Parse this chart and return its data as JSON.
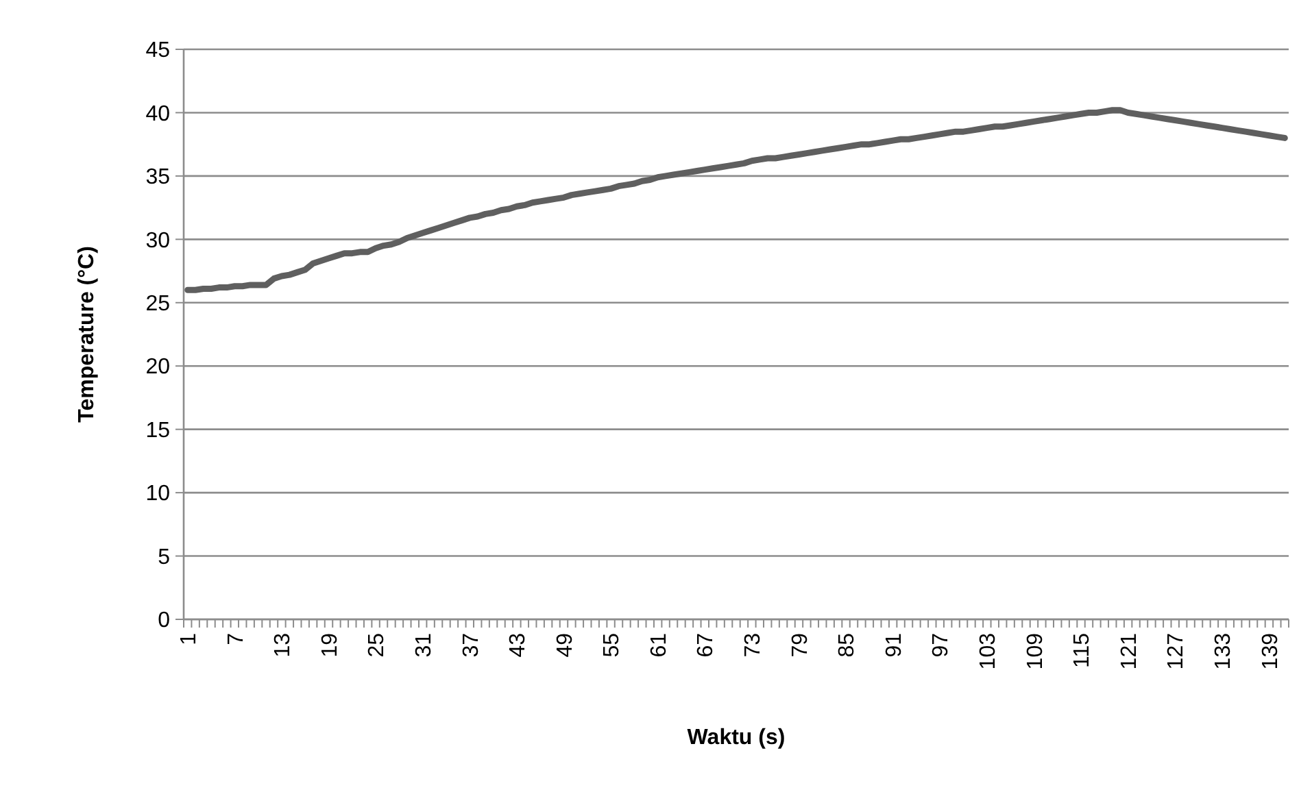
{
  "chart_data": {
    "type": "line",
    "xlabel": "Waktu (s)",
    "ylabel": "Temperature (°C)",
    "categories": [
      "1",
      null,
      null,
      null,
      null,
      null,
      "7",
      null,
      null,
      null,
      null,
      null,
      "13",
      null,
      null,
      null,
      null,
      null,
      "19",
      null,
      null,
      null,
      null,
      null,
      "25",
      null,
      null,
      null,
      null,
      null,
      "31",
      null,
      null,
      null,
      null,
      null,
      "37",
      null,
      null,
      null,
      null,
      null,
      "43",
      null,
      null,
      null,
      null,
      null,
      "49",
      null,
      null,
      null,
      null,
      null,
      "55",
      null,
      null,
      null,
      null,
      null,
      "61",
      null,
      null,
      null,
      null,
      null,
      "67",
      null,
      null,
      null,
      null,
      null,
      "73",
      null,
      null,
      null,
      null,
      null,
      "79",
      null,
      null,
      null,
      null,
      null,
      "85",
      null,
      null,
      null,
      null,
      null,
      "91",
      null,
      null,
      null,
      null,
      null,
      "97",
      null,
      null,
      null,
      null,
      null,
      "103",
      null,
      null,
      null,
      null,
      null,
      "109",
      null,
      null,
      null,
      null,
      null,
      "115",
      null,
      null,
      null,
      null,
      null,
      "121",
      null,
      null,
      null,
      null,
      null,
      "127",
      null,
      null,
      null,
      null,
      null,
      "133",
      null,
      null,
      null,
      null,
      null,
      "139",
      null,
      null
    ],
    "series": [
      {
        "color": "#5f5f5f",
        "values": [
          26.0,
          26.0,
          26.1,
          26.1,
          26.2,
          26.2,
          26.3,
          26.3,
          26.4,
          26.4,
          26.4,
          26.9,
          27.1,
          27.2,
          27.4,
          27.6,
          28.1,
          28.3,
          28.5,
          28.7,
          28.9,
          28.9,
          29.0,
          29.0,
          29.3,
          29.5,
          29.6,
          29.8,
          30.1,
          30.3,
          30.5,
          30.7,
          30.9,
          31.1,
          31.3,
          31.5,
          31.7,
          31.8,
          32.0,
          32.1,
          32.3,
          32.4,
          32.6,
          32.7,
          32.9,
          33.0,
          33.1,
          33.2,
          33.3,
          33.5,
          33.6,
          33.7,
          33.8,
          33.9,
          34.0,
          34.2,
          34.3,
          34.4,
          34.6,
          34.7,
          34.9,
          35.0,
          35.1,
          35.2,
          35.3,
          35.4,
          35.5,
          35.6,
          35.7,
          35.8,
          35.9,
          36.0,
          36.2,
          36.3,
          36.4,
          36.4,
          36.5,
          36.6,
          36.7,
          36.8,
          36.9,
          37.0,
          37.1,
          37.2,
          37.3,
          37.4,
          37.5,
          37.5,
          37.6,
          37.7,
          37.8,
          37.9,
          37.9,
          38.0,
          38.1,
          38.2,
          38.3,
          38.4,
          38.5,
          38.5,
          38.6,
          38.7,
          38.8,
          38.9,
          38.9,
          39.0,
          39.1,
          39.2,
          39.3,
          39.4,
          39.5,
          39.6,
          39.7,
          39.8,
          39.9,
          40.0,
          40.0,
          40.1,
          40.2,
          40.2,
          40.0,
          39.9,
          39.8,
          39.7,
          39.6,
          39.5,
          39.4,
          39.3,
          39.2,
          39.1,
          39.0,
          38.9,
          38.8,
          38.7,
          38.6,
          38.5,
          38.4,
          38.3,
          38.2,
          38.1,
          38.0
        ]
      }
    ],
    "ylim": [
      0,
      45
    ],
    "yticks": [
      0,
      5,
      10,
      15,
      20,
      25,
      30,
      35,
      40,
      45
    ],
    "grid": "y",
    "marker": "none",
    "line_style": "solid"
  }
}
